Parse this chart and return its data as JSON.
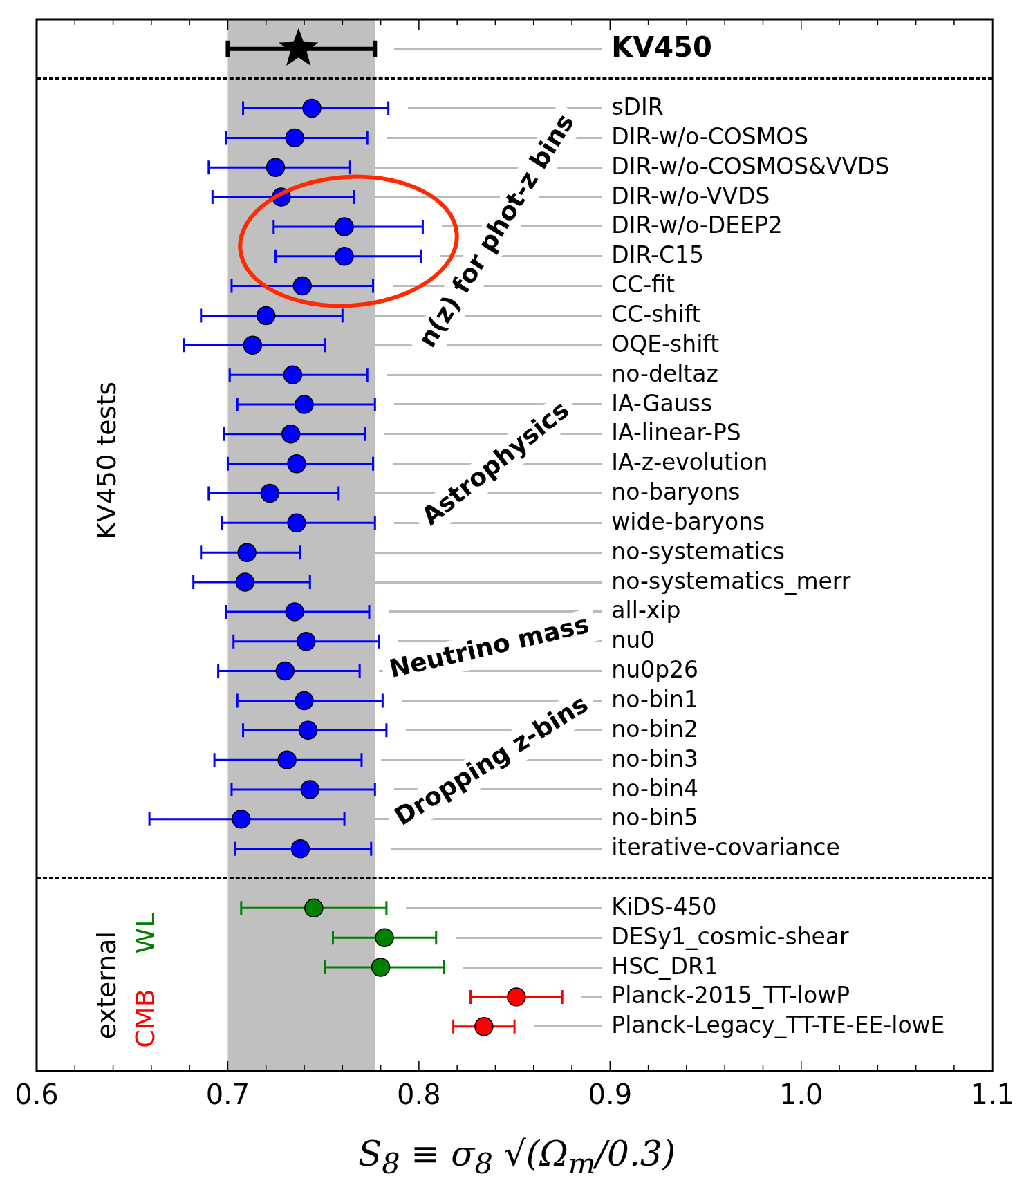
{
  "chart_data": {
    "type": "scatter",
    "orientation": "horizontal",
    "xlabel": "S$_{8}$ ≡ σ$_{8}$ √(Ω$_{m}$/0.3)",
    "categories": [
      "KV450",
      null,
      "sDIR",
      "DIR-w/o-COSMOS",
      "DIR-w/o-COSMOS&VVDS",
      "DIR-w/o-VVDS",
      "DIR-w/o-DEEP2",
      "DIR-C15",
      "CC-fit",
      "CC-shift",
      "OQE-shift",
      "no-deltaz",
      "IA-Gauss",
      "IA-linear-PS",
      "IA-z-evolution",
      "no-baryons",
      "wide-baryons",
      "no-systematics",
      "no-systematics_merr",
      "all-xip",
      "nu0",
      "nu0p26",
      "no-bin1",
      "no-bin2",
      "no-bin3",
      "no-bin4",
      "no-bin5",
      "iterative-covariance",
      null,
      "KiDS-450",
      "DESy1_cosmic-shear",
      "HSC_DR1",
      "Planck-2015_TT-lowP",
      "Planck-Legacy_TT-TE-EE-lowE"
    ],
    "series": [
      {
        "color": "#000000",
        "marker": "star",
        "values": [
          0.737,
          null,
          null,
          null,
          null,
          null,
          null,
          null,
          null,
          null,
          null,
          null,
          null,
          null,
          null,
          null,
          null,
          null,
          null,
          null,
          null,
          null,
          null,
          null,
          null,
          null,
          null,
          null,
          null,
          null,
          null,
          null,
          null,
          null
        ],
        "errors": [
          [
            0.7,
            0.777
          ],
          null,
          null,
          null,
          null,
          null,
          null,
          null,
          null,
          null,
          null,
          null,
          null,
          null,
          null,
          null,
          null,
          null,
          null,
          null,
          null,
          null,
          null,
          null,
          null,
          null,
          null,
          null,
          null,
          null,
          null,
          null,
          null,
          null
        ]
      },
      {
        "color": "#0000ff",
        "marker": "circle",
        "values": [
          null,
          null,
          0.744,
          0.735,
          0.725,
          0.728,
          0.761,
          0.761,
          0.739,
          0.72,
          0.713,
          0.734,
          0.74,
          0.733,
          0.736,
          0.722,
          0.736,
          0.71,
          0.709,
          0.735,
          0.741,
          0.73,
          0.74,
          0.742,
          0.731,
          0.743,
          0.707,
          0.738,
          null,
          null,
          null,
          null,
          null,
          null
        ],
        "errors": [
          null,
          null,
          [
            0.708,
            0.784
          ],
          [
            0.699,
            0.773
          ],
          [
            0.69,
            0.764
          ],
          [
            0.692,
            0.766
          ],
          [
            0.724,
            0.802
          ],
          [
            0.725,
            0.801
          ],
          [
            0.702,
            0.776
          ],
          [
            0.686,
            0.76
          ],
          [
            0.677,
            0.751
          ],
          [
            0.701,
            0.773
          ],
          [
            0.705,
            0.777
          ],
          [
            0.698,
            0.772
          ],
          [
            0.7,
            0.776
          ],
          [
            0.69,
            0.758
          ],
          [
            0.697,
            0.777
          ],
          [
            0.686,
            0.738
          ],
          [
            0.682,
            0.743
          ],
          [
            0.699,
            0.774
          ],
          [
            0.703,
            0.779
          ],
          [
            0.695,
            0.769
          ],
          [
            0.705,
            0.781
          ],
          [
            0.708,
            0.783
          ],
          [
            0.693,
            0.77
          ],
          [
            0.702,
            0.777
          ],
          [
            0.659,
            0.761
          ],
          [
            0.704,
            0.775
          ],
          null,
          null,
          null,
          null,
          null,
          null
        ]
      },
      {
        "name": "WL",
        "color": "#008000",
        "marker": "circle",
        "values": [
          null,
          null,
          null,
          null,
          null,
          null,
          null,
          null,
          null,
          null,
          null,
          null,
          null,
          null,
          null,
          null,
          null,
          null,
          null,
          null,
          null,
          null,
          null,
          null,
          null,
          null,
          null,
          null,
          null,
          0.745,
          0.782,
          0.78,
          null,
          null
        ],
        "errors": [
          null,
          null,
          null,
          null,
          null,
          null,
          null,
          null,
          null,
          null,
          null,
          null,
          null,
          null,
          null,
          null,
          null,
          null,
          null,
          null,
          null,
          null,
          null,
          null,
          null,
          null,
          null,
          null,
          null,
          [
            0.707,
            0.783
          ],
          [
            0.755,
            0.809
          ],
          [
            0.751,
            0.813
          ],
          null,
          null
        ]
      },
      {
        "name": "CMB",
        "color": "#ff0000",
        "marker": "circle",
        "values": [
          null,
          null,
          null,
          null,
          null,
          null,
          null,
          null,
          null,
          null,
          null,
          null,
          null,
          null,
          null,
          null,
          null,
          null,
          null,
          null,
          null,
          null,
          null,
          null,
          null,
          null,
          null,
          null,
          null,
          null,
          null,
          null,
          0.851,
          0.834
        ],
        "errors": [
          null,
          null,
          null,
          null,
          null,
          null,
          null,
          null,
          null,
          null,
          null,
          null,
          null,
          null,
          null,
          null,
          null,
          null,
          null,
          null,
          null,
          null,
          null,
          null,
          null,
          null,
          null,
          null,
          null,
          null,
          null,
          null,
          [
            0.827,
            0.875
          ],
          [
            0.818,
            0.85
          ]
        ]
      }
    ],
    "xlim": [
      0.6,
      1.1
    ],
    "xticks": [
      0.6,
      {
        "value": 0.62,
        "label": null
      },
      {
        "value": 0.64,
        "label": null
      },
      {
        "value": 0.66,
        "label": null
      },
      {
        "value": 0.68,
        "label": null
      },
      0.7,
      {
        "value": 0.72,
        "label": null
      },
      {
        "value": 0.74,
        "label": null
      },
      {
        "value": 0.76,
        "label": null
      },
      {
        "value": 0.78,
        "label": null
      },
      0.8,
      {
        "value": 0.82,
        "label": null
      },
      {
        "value": 0.84,
        "label": null
      },
      {
        "value": 0.86,
        "label": null
      },
      {
        "value": 0.88,
        "label": null
      },
      0.9,
      {
        "value": 0.92,
        "label": null
      },
      {
        "value": 0.94,
        "label": null
      },
      {
        "value": 0.96,
        "label": null
      },
      {
        "value": 0.98,
        "label": null
      },
      {
        "value": 1.0,
        "label": "1.0"
      },
      {
        "value": 1.02,
        "label": null
      },
      {
        "value": 1.04,
        "label": null
      },
      {
        "value": 1.06,
        "label": null
      },
      {
        "value": 1.08,
        "label": null
      },
      1.1
    ],
    "bands": [
      {
        "axis": "x",
        "from": 0.7,
        "to": 0.777,
        "color": "#c0c0c0"
      }
    ],
    "annotations": [
      "n(z) for phot-z bins",
      "Astrophysics",
      "Neutrino mass",
      "Dropping z-bins",
      "KV450 tests",
      "external"
    ],
    "legend": false,
    "grid": false
  }
}
